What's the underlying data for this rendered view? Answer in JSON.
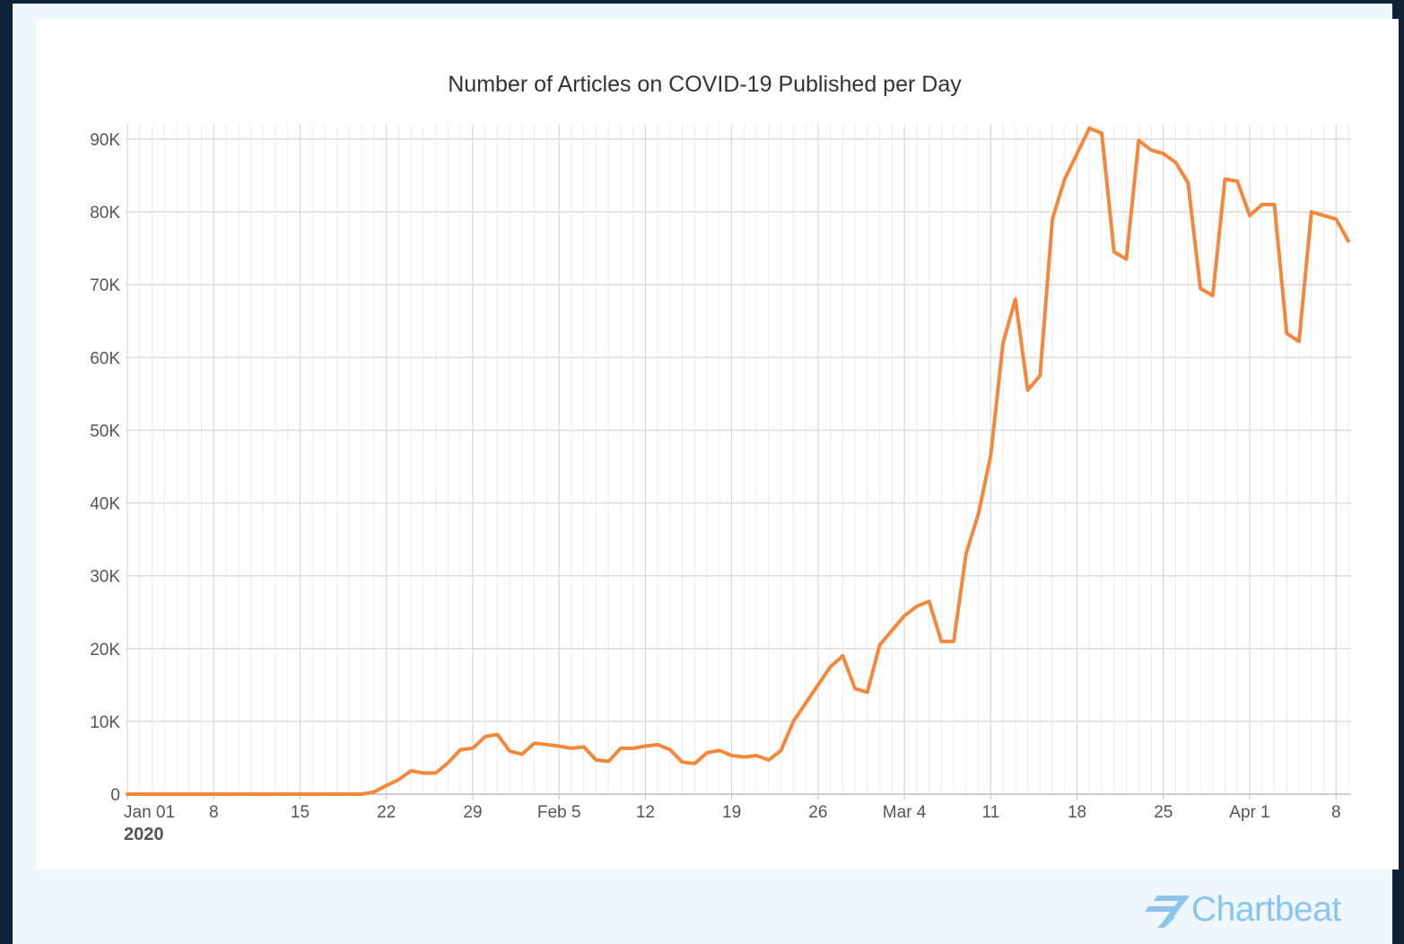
{
  "chart_data": {
    "type": "line",
    "title": "Number of Articles on COVID-19 Published per Day",
    "xlabel": "",
    "ylabel": "",
    "x_start": "2020-01-01",
    "x_end": "2020-04-09",
    "ylim": [
      0,
      90000
    ],
    "yticks": [
      {
        "value": 0,
        "label": "0"
      },
      {
        "value": 10000,
        "label": "10K"
      },
      {
        "value": 20000,
        "label": "20K"
      },
      {
        "value": 30000,
        "label": "30K"
      },
      {
        "value": 40000,
        "label": "40K"
      },
      {
        "value": 50000,
        "label": "50K"
      },
      {
        "value": 60000,
        "label": "60K"
      },
      {
        "value": 70000,
        "label": "70K"
      },
      {
        "value": 80000,
        "label": "80K"
      },
      {
        "value": 90000,
        "label": "90K"
      }
    ],
    "xticks": [
      {
        "date": "2020-01-01",
        "label": "Jan 01",
        "sublabel": "2020"
      },
      {
        "date": "2020-01-08",
        "label": "8"
      },
      {
        "date": "2020-01-15",
        "label": "15"
      },
      {
        "date": "2020-01-22",
        "label": "22"
      },
      {
        "date": "2020-01-29",
        "label": "29"
      },
      {
        "date": "2020-02-05",
        "label": "Feb 5"
      },
      {
        "date": "2020-02-12",
        "label": "12"
      },
      {
        "date": "2020-02-19",
        "label": "19"
      },
      {
        "date": "2020-02-26",
        "label": "26"
      },
      {
        "date": "2020-03-04",
        "label": "Mar 4"
      },
      {
        "date": "2020-03-11",
        "label": "11"
      },
      {
        "date": "2020-03-18",
        "label": "18"
      },
      {
        "date": "2020-03-25",
        "label": "25"
      },
      {
        "date": "2020-04-01",
        "label": "Apr 1"
      },
      {
        "date": "2020-04-08",
        "label": "8"
      }
    ],
    "grid": true,
    "line_color": "#f5873a",
    "series": [
      {
        "values": [
          {
            "x": "2020-01-01",
            "y": 0
          },
          {
            "x": "2020-01-02",
            "y": 0
          },
          {
            "x": "2020-01-03",
            "y": 0
          },
          {
            "x": "2020-01-04",
            "y": 0
          },
          {
            "x": "2020-01-05",
            "y": 0
          },
          {
            "x": "2020-01-06",
            "y": 0
          },
          {
            "x": "2020-01-07",
            "y": 0
          },
          {
            "x": "2020-01-08",
            "y": 0
          },
          {
            "x": "2020-01-09",
            "y": 0
          },
          {
            "x": "2020-01-10",
            "y": 0
          },
          {
            "x": "2020-01-11",
            "y": 0
          },
          {
            "x": "2020-01-12",
            "y": 0
          },
          {
            "x": "2020-01-13",
            "y": 0
          },
          {
            "x": "2020-01-14",
            "y": 0
          },
          {
            "x": "2020-01-15",
            "y": 0
          },
          {
            "x": "2020-01-16",
            "y": 0
          },
          {
            "x": "2020-01-17",
            "y": 0
          },
          {
            "x": "2020-01-18",
            "y": 0
          },
          {
            "x": "2020-01-19",
            "y": 0
          },
          {
            "x": "2020-01-20",
            "y": 0
          },
          {
            "x": "2020-01-21",
            "y": 300
          },
          {
            "x": "2020-01-22",
            "y": 1200
          },
          {
            "x": "2020-01-23",
            "y": 2000
          },
          {
            "x": "2020-01-24",
            "y": 3200
          },
          {
            "x": "2020-01-25",
            "y": 2900
          },
          {
            "x": "2020-01-26",
            "y": 2900
          },
          {
            "x": "2020-01-27",
            "y": 4300
          },
          {
            "x": "2020-01-28",
            "y": 6100
          },
          {
            "x": "2020-01-29",
            "y": 6300
          },
          {
            "x": "2020-01-30",
            "y": 7900
          },
          {
            "x": "2020-01-31",
            "y": 8200
          },
          {
            "x": "2020-02-01",
            "y": 5900
          },
          {
            "x": "2020-02-02",
            "y": 5500
          },
          {
            "x": "2020-02-03",
            "y": 7000
          },
          {
            "x": "2020-02-04",
            "y": 6800
          },
          {
            "x": "2020-02-05",
            "y": 6600
          },
          {
            "x": "2020-02-06",
            "y": 6300
          },
          {
            "x": "2020-02-07",
            "y": 6500
          },
          {
            "x": "2020-02-08",
            "y": 4700
          },
          {
            "x": "2020-02-09",
            "y": 4500
          },
          {
            "x": "2020-02-10",
            "y": 6300
          },
          {
            "x": "2020-02-11",
            "y": 6300
          },
          {
            "x": "2020-02-12",
            "y": 6600
          },
          {
            "x": "2020-02-13",
            "y": 6800
          },
          {
            "x": "2020-02-14",
            "y": 6100
          },
          {
            "x": "2020-02-15",
            "y": 4400
          },
          {
            "x": "2020-02-16",
            "y": 4200
          },
          {
            "x": "2020-02-17",
            "y": 5700
          },
          {
            "x": "2020-02-18",
            "y": 6000
          },
          {
            "x": "2020-02-19",
            "y": 5300
          },
          {
            "x": "2020-02-20",
            "y": 5100
          },
          {
            "x": "2020-02-21",
            "y": 5300
          },
          {
            "x": "2020-02-22",
            "y": 4700
          },
          {
            "x": "2020-02-23",
            "y": 6000
          },
          {
            "x": "2020-02-24",
            "y": 10000
          },
          {
            "x": "2020-02-25",
            "y": 12500
          },
          {
            "x": "2020-02-26",
            "y": 15000
          },
          {
            "x": "2020-02-27",
            "y": 17500
          },
          {
            "x": "2020-02-28",
            "y": 19000
          },
          {
            "x": "2020-02-29",
            "y": 14500
          },
          {
            "x": "2020-03-01",
            "y": 14000
          },
          {
            "x": "2020-03-02",
            "y": 20500
          },
          {
            "x": "2020-03-03",
            "y": 22500
          },
          {
            "x": "2020-03-04",
            "y": 24500
          },
          {
            "x": "2020-03-05",
            "y": 25800
          },
          {
            "x": "2020-03-06",
            "y": 26500
          },
          {
            "x": "2020-03-07",
            "y": 21000
          },
          {
            "x": "2020-03-08",
            "y": 21000
          },
          {
            "x": "2020-03-09",
            "y": 33000
          },
          {
            "x": "2020-03-10",
            "y": 38500
          },
          {
            "x": "2020-03-11",
            "y": 46500
          },
          {
            "x": "2020-03-12",
            "y": 62000
          },
          {
            "x": "2020-03-13",
            "y": 68000
          },
          {
            "x": "2020-03-14",
            "y": 55500
          },
          {
            "x": "2020-03-15",
            "y": 57500
          },
          {
            "x": "2020-03-16",
            "y": 79000
          },
          {
            "x": "2020-03-17",
            "y": 84500
          },
          {
            "x": "2020-03-18",
            "y": 88000
          },
          {
            "x": "2020-03-19",
            "y": 91500
          },
          {
            "x": "2020-03-20",
            "y": 90800
          },
          {
            "x": "2020-03-21",
            "y": 74500
          },
          {
            "x": "2020-03-22",
            "y": 73500
          },
          {
            "x": "2020-03-23",
            "y": 89800
          },
          {
            "x": "2020-03-24",
            "y": 88500
          },
          {
            "x": "2020-03-25",
            "y": 88000
          },
          {
            "x": "2020-03-26",
            "y": 86800
          },
          {
            "x": "2020-03-27",
            "y": 84000
          },
          {
            "x": "2020-03-28",
            "y": 69500
          },
          {
            "x": "2020-03-29",
            "y": 68500
          },
          {
            "x": "2020-03-30",
            "y": 84500
          },
          {
            "x": "2020-03-31",
            "y": 84200
          },
          {
            "x": "2020-04-01",
            "y": 79500
          },
          {
            "x": "2020-04-02",
            "y": 81000
          },
          {
            "x": "2020-04-03",
            "y": 81000
          },
          {
            "x": "2020-04-04",
            "y": 63300
          },
          {
            "x": "2020-04-05",
            "y": 62200
          },
          {
            "x": "2020-04-06",
            "y": 80000
          },
          {
            "x": "2020-04-07",
            "y": 79500
          },
          {
            "x": "2020-04-08",
            "y": 79000
          },
          {
            "x": "2020-04-09",
            "y": 76000
          }
        ]
      }
    ]
  },
  "branding": {
    "logo_text": "Chartbeat",
    "logo_icon": "chartbeat-stripes-icon",
    "logo_color": "#8cc4ec"
  }
}
